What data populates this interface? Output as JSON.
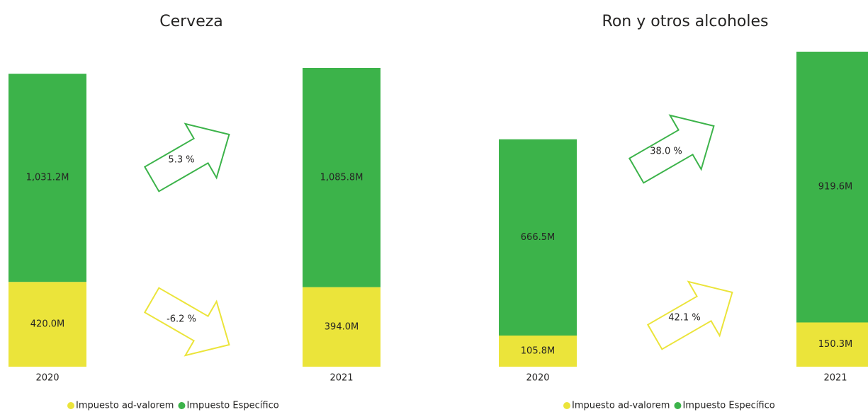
{
  "chart_data": [
    {
      "type": "bar",
      "stacked": true,
      "title": "Cerveza",
      "categories": [
        "2020",
        "2021"
      ],
      "series": [
        {
          "name": "Impuesto ad-valorem",
          "color": "#ebe43a",
          "values": [
            420.0,
            394.0
          ],
          "value_labels": [
            "420.0M",
            "394.0M"
          ],
          "change": -6.2,
          "change_label": "-6.2 %"
        },
        {
          "name": "Impuesto Específico",
          "color": "#3cb34a",
          "values": [
            1031.2,
            1085.8
          ],
          "value_labels": [
            "1,031.2M",
            "1,085.8M"
          ],
          "change": 5.3,
          "change_label": "5.3 %"
        }
      ],
      "legend": "bottom"
    },
    {
      "type": "bar",
      "stacked": true,
      "title": "Ron y otros alcoholes",
      "categories": [
        "2020",
        "2021"
      ],
      "series": [
        {
          "name": "Impuesto ad-valorem",
          "color": "#ebe43a",
          "values": [
            105.8,
            150.3
          ],
          "value_labels": [
            "105.8M",
            "150.3M"
          ],
          "change": 42.1,
          "change_label": "42.1 %"
        },
        {
          "name": "Impuesto Específico",
          "color": "#3cb34a",
          "values": [
            666.5,
            919.6
          ],
          "value_labels": [
            "666.5M",
            "919.6M"
          ],
          "change": 38.0,
          "change_label": "38.0 %"
        }
      ],
      "legend": "bottom"
    }
  ]
}
